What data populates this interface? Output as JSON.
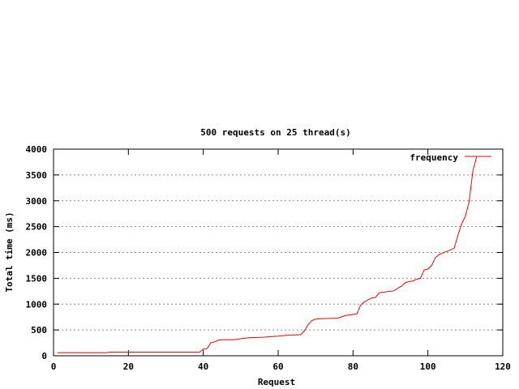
{
  "chart_data": {
    "type": "line",
    "title": "500 requests on 25 thread(s)",
    "xlabel": "Request",
    "ylabel": "Total time (ms)",
    "xlim": [
      0,
      120
    ],
    "ylim": [
      0,
      4000
    ],
    "xticks": [
      0,
      20,
      40,
      60,
      80,
      100,
      120
    ],
    "yticks": [
      0,
      500,
      1000,
      1500,
      2000,
      2500,
      3000,
      3500,
      4000
    ],
    "grid": "horizontal dotted",
    "legend_position": "top-right",
    "series": [
      {
        "name": "frequency",
        "color": "#ff0000",
        "points": [
          [
            1,
            60
          ],
          [
            14,
            60
          ],
          [
            15,
            70
          ],
          [
            39,
            70
          ],
          [
            40,
            130
          ],
          [
            41,
            140
          ],
          [
            42,
            250
          ],
          [
            43,
            270
          ],
          [
            44,
            300
          ],
          [
            45,
            310
          ],
          [
            48,
            310
          ],
          [
            50,
            330
          ],
          [
            52,
            350
          ],
          [
            56,
            360
          ],
          [
            60,
            380
          ],
          [
            62,
            395
          ],
          [
            64,
            400
          ],
          [
            66,
            410
          ],
          [
            67,
            480
          ],
          [
            68,
            600
          ],
          [
            69,
            680
          ],
          [
            70,
            710
          ],
          [
            72,
            720
          ],
          [
            76,
            730
          ],
          [
            78,
            780
          ],
          [
            80,
            800
          ],
          [
            81,
            810
          ],
          [
            82,
            980
          ],
          [
            83,
            1040
          ],
          [
            84,
            1080
          ],
          [
            85,
            1120
          ],
          [
            86,
            1130
          ],
          [
            87,
            1220
          ],
          [
            88,
            1230
          ],
          [
            91,
            1260
          ],
          [
            92,
            1310
          ],
          [
            93,
            1350
          ],
          [
            94,
            1420
          ],
          [
            96,
            1450
          ],
          [
            97,
            1480
          ],
          [
            98,
            1500
          ],
          [
            99,
            1660
          ],
          [
            100,
            1680
          ],
          [
            101,
            1750
          ],
          [
            102,
            1900
          ],
          [
            103,
            1960
          ],
          [
            104,
            1990
          ],
          [
            105,
            2020
          ],
          [
            106,
            2050
          ],
          [
            107,
            2080
          ],
          [
            108,
            2330
          ],
          [
            109,
            2550
          ],
          [
            110,
            2700
          ],
          [
            111,
            2980
          ],
          [
            112,
            3580
          ],
          [
            113,
            3850
          ]
        ]
      }
    ]
  }
}
